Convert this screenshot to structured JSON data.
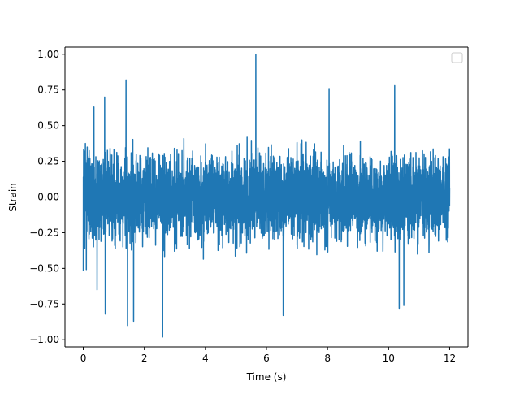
{
  "chart_data": {
    "type": "line",
    "title": "",
    "xlabel": "Time (s)",
    "ylabel": "Strain",
    "xlim": [
      -0.6,
      12.6
    ],
    "ylim": [
      -1.05,
      1.05
    ],
    "xticks": [
      0,
      2,
      4,
      6,
      8,
      10,
      12
    ],
    "xtick_labels": [
      "0",
      "2",
      "4",
      "6",
      "8",
      "10",
      "12"
    ],
    "yticks": [
      -1.0,
      -0.75,
      -0.5,
      -0.25,
      0.0,
      0.25,
      0.5,
      0.75,
      1.0
    ],
    "ytick_labels": [
      "−1.00",
      "−0.75",
      "−0.50",
      "−0.25",
      "0.00",
      "0.25",
      "0.50",
      "0.75",
      "1.00"
    ],
    "grid": false,
    "legend": {
      "visible": true,
      "placement": "top-right",
      "entries": []
    },
    "series": [
      {
        "color": "#1f77b4",
        "x_start": 0,
        "x_end": 12,
        "description": "dense noise-like waveform",
        "envelope": [
          {
            "x": 0.0,
            "y": 0.52
          },
          {
            "x": 0.0,
            "y": -0.52
          },
          {
            "x": 0.35,
            "y": 0.63
          },
          {
            "x": 0.45,
            "y": -0.65
          },
          {
            "x": 0.7,
            "y": 0.7
          },
          {
            "x": 0.72,
            "y": -0.82
          },
          {
            "x": 1.4,
            "y": 0.82
          },
          {
            "x": 1.45,
            "y": -0.9
          },
          {
            "x": 1.65,
            "y": -0.87
          },
          {
            "x": 2.6,
            "y": -0.98
          },
          {
            "x": 5.65,
            "y": 1.0
          },
          {
            "x": 6.55,
            "y": -0.83
          },
          {
            "x": 8.05,
            "y": 0.76
          },
          {
            "x": 10.2,
            "y": 0.78
          },
          {
            "x": 10.35,
            "y": -0.78
          },
          {
            "x": 10.5,
            "y": -0.76
          }
        ]
      }
    ]
  }
}
